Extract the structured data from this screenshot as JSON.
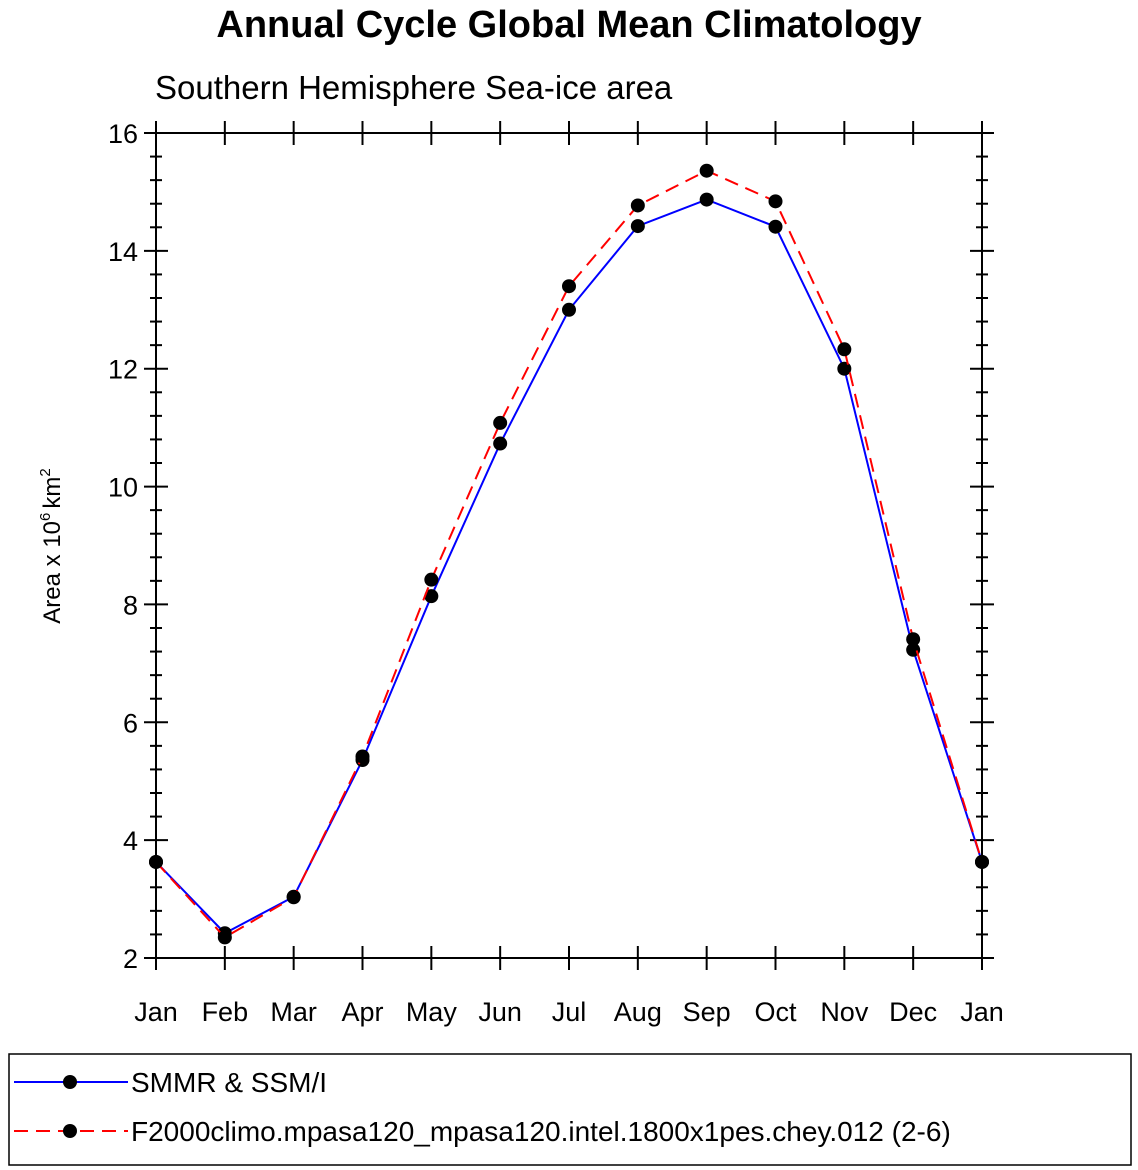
{
  "chart_data": {
    "type": "line",
    "title": "Annual Cycle Global Mean Climatology",
    "subtitle": "Southern Hemisphere Sea-ice area",
    "ylabel": "Area x 10",
    "ylabel_exponent": "6",
    "ylabel_unit": "km",
    "ylabel_unit_exponent": "2",
    "categories": [
      "Jan",
      "Feb",
      "Mar",
      "Apr",
      "May",
      "Jun",
      "Jul",
      "Aug",
      "Sep",
      "Oct",
      "Nov",
      "Dec",
      "Jan"
    ],
    "ylim": [
      2,
      16
    ],
    "yticks": [
      2,
      4,
      6,
      8,
      10,
      12,
      14,
      16
    ],
    "ytick_labels": [
      "2",
      "4",
      "6",
      "8",
      "10",
      "12",
      "14",
      "16"
    ],
    "series": [
      {
        "name": "SMMR & SSM/I",
        "color": "#0000ff",
        "dash": "solid",
        "values": [
          3.63,
          2.42,
          3.04,
          5.36,
          8.14,
          10.73,
          13.0,
          14.42,
          14.87,
          14.41,
          12.0,
          7.23,
          3.63
        ]
      },
      {
        "name": "F2000climo.mpasa120_mpasa120.intel.1800x1pes.chey.012 (2-6)",
        "color": "#ff0000",
        "dash": "dashed",
        "values": [
          3.63,
          2.35,
          3.03,
          5.42,
          8.42,
          11.08,
          13.4,
          14.77,
          15.36,
          14.84,
          12.33,
          7.41,
          3.63
        ]
      }
    ],
    "legend_position": "bottom"
  }
}
